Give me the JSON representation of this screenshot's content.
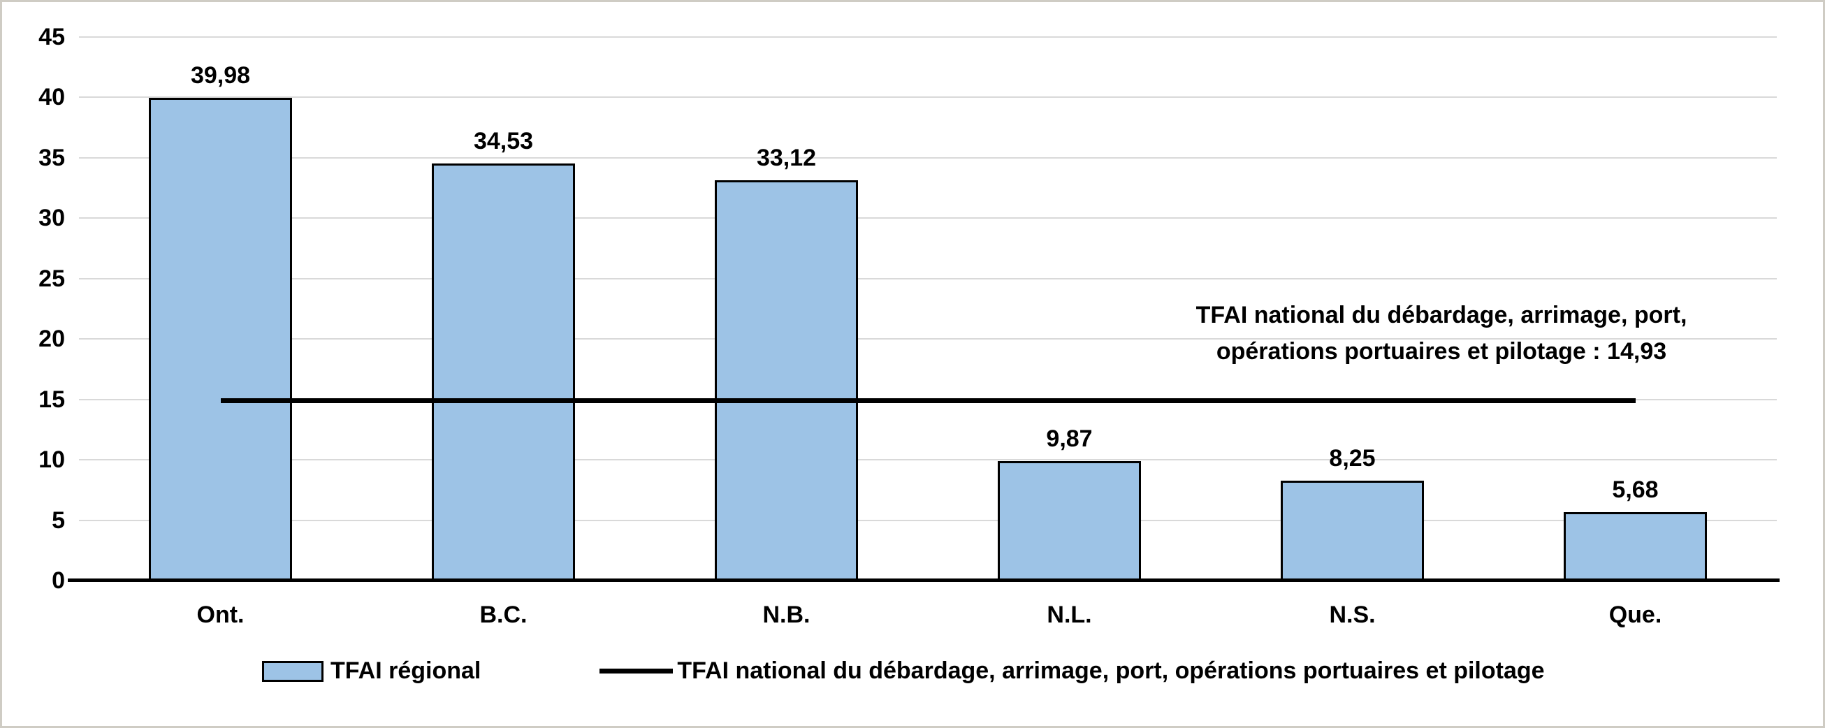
{
  "chart_data": {
    "type": "bar",
    "title": "",
    "categories": [
      "Ont.",
      "B.C.",
      "N.B.",
      "N.L.",
      "N.S.",
      "Que."
    ],
    "values": [
      39.98,
      34.53,
      33.12,
      9.87,
      8.25,
      5.68
    ],
    "value_labels": [
      "39,98",
      "34,53",
      "33,12",
      "9,87",
      "8,25",
      "5,68"
    ],
    "ylim": [
      0,
      45
    ],
    "yticks": [
      0,
      5,
      10,
      15,
      20,
      25,
      30,
      35,
      40,
      45
    ],
    "grid": true,
    "legend_position": "bottom",
    "national_line": {
      "value": 14.93,
      "annotation_line1": "TFAI national du débardage, arrimage, port,",
      "annotation_line2": "opérations portuaires et pilotage : 14,93"
    },
    "legend": {
      "bar_label": "TFAI régional",
      "line_label": "TFAI national du débardage, arrimage, port, opérations portuaires et pilotage"
    },
    "colors": {
      "bar_fill": "#9DC3E6",
      "bar_border": "#000000",
      "line": "#000000",
      "grid": "#D9D9D9",
      "axis": "#000000"
    }
  }
}
